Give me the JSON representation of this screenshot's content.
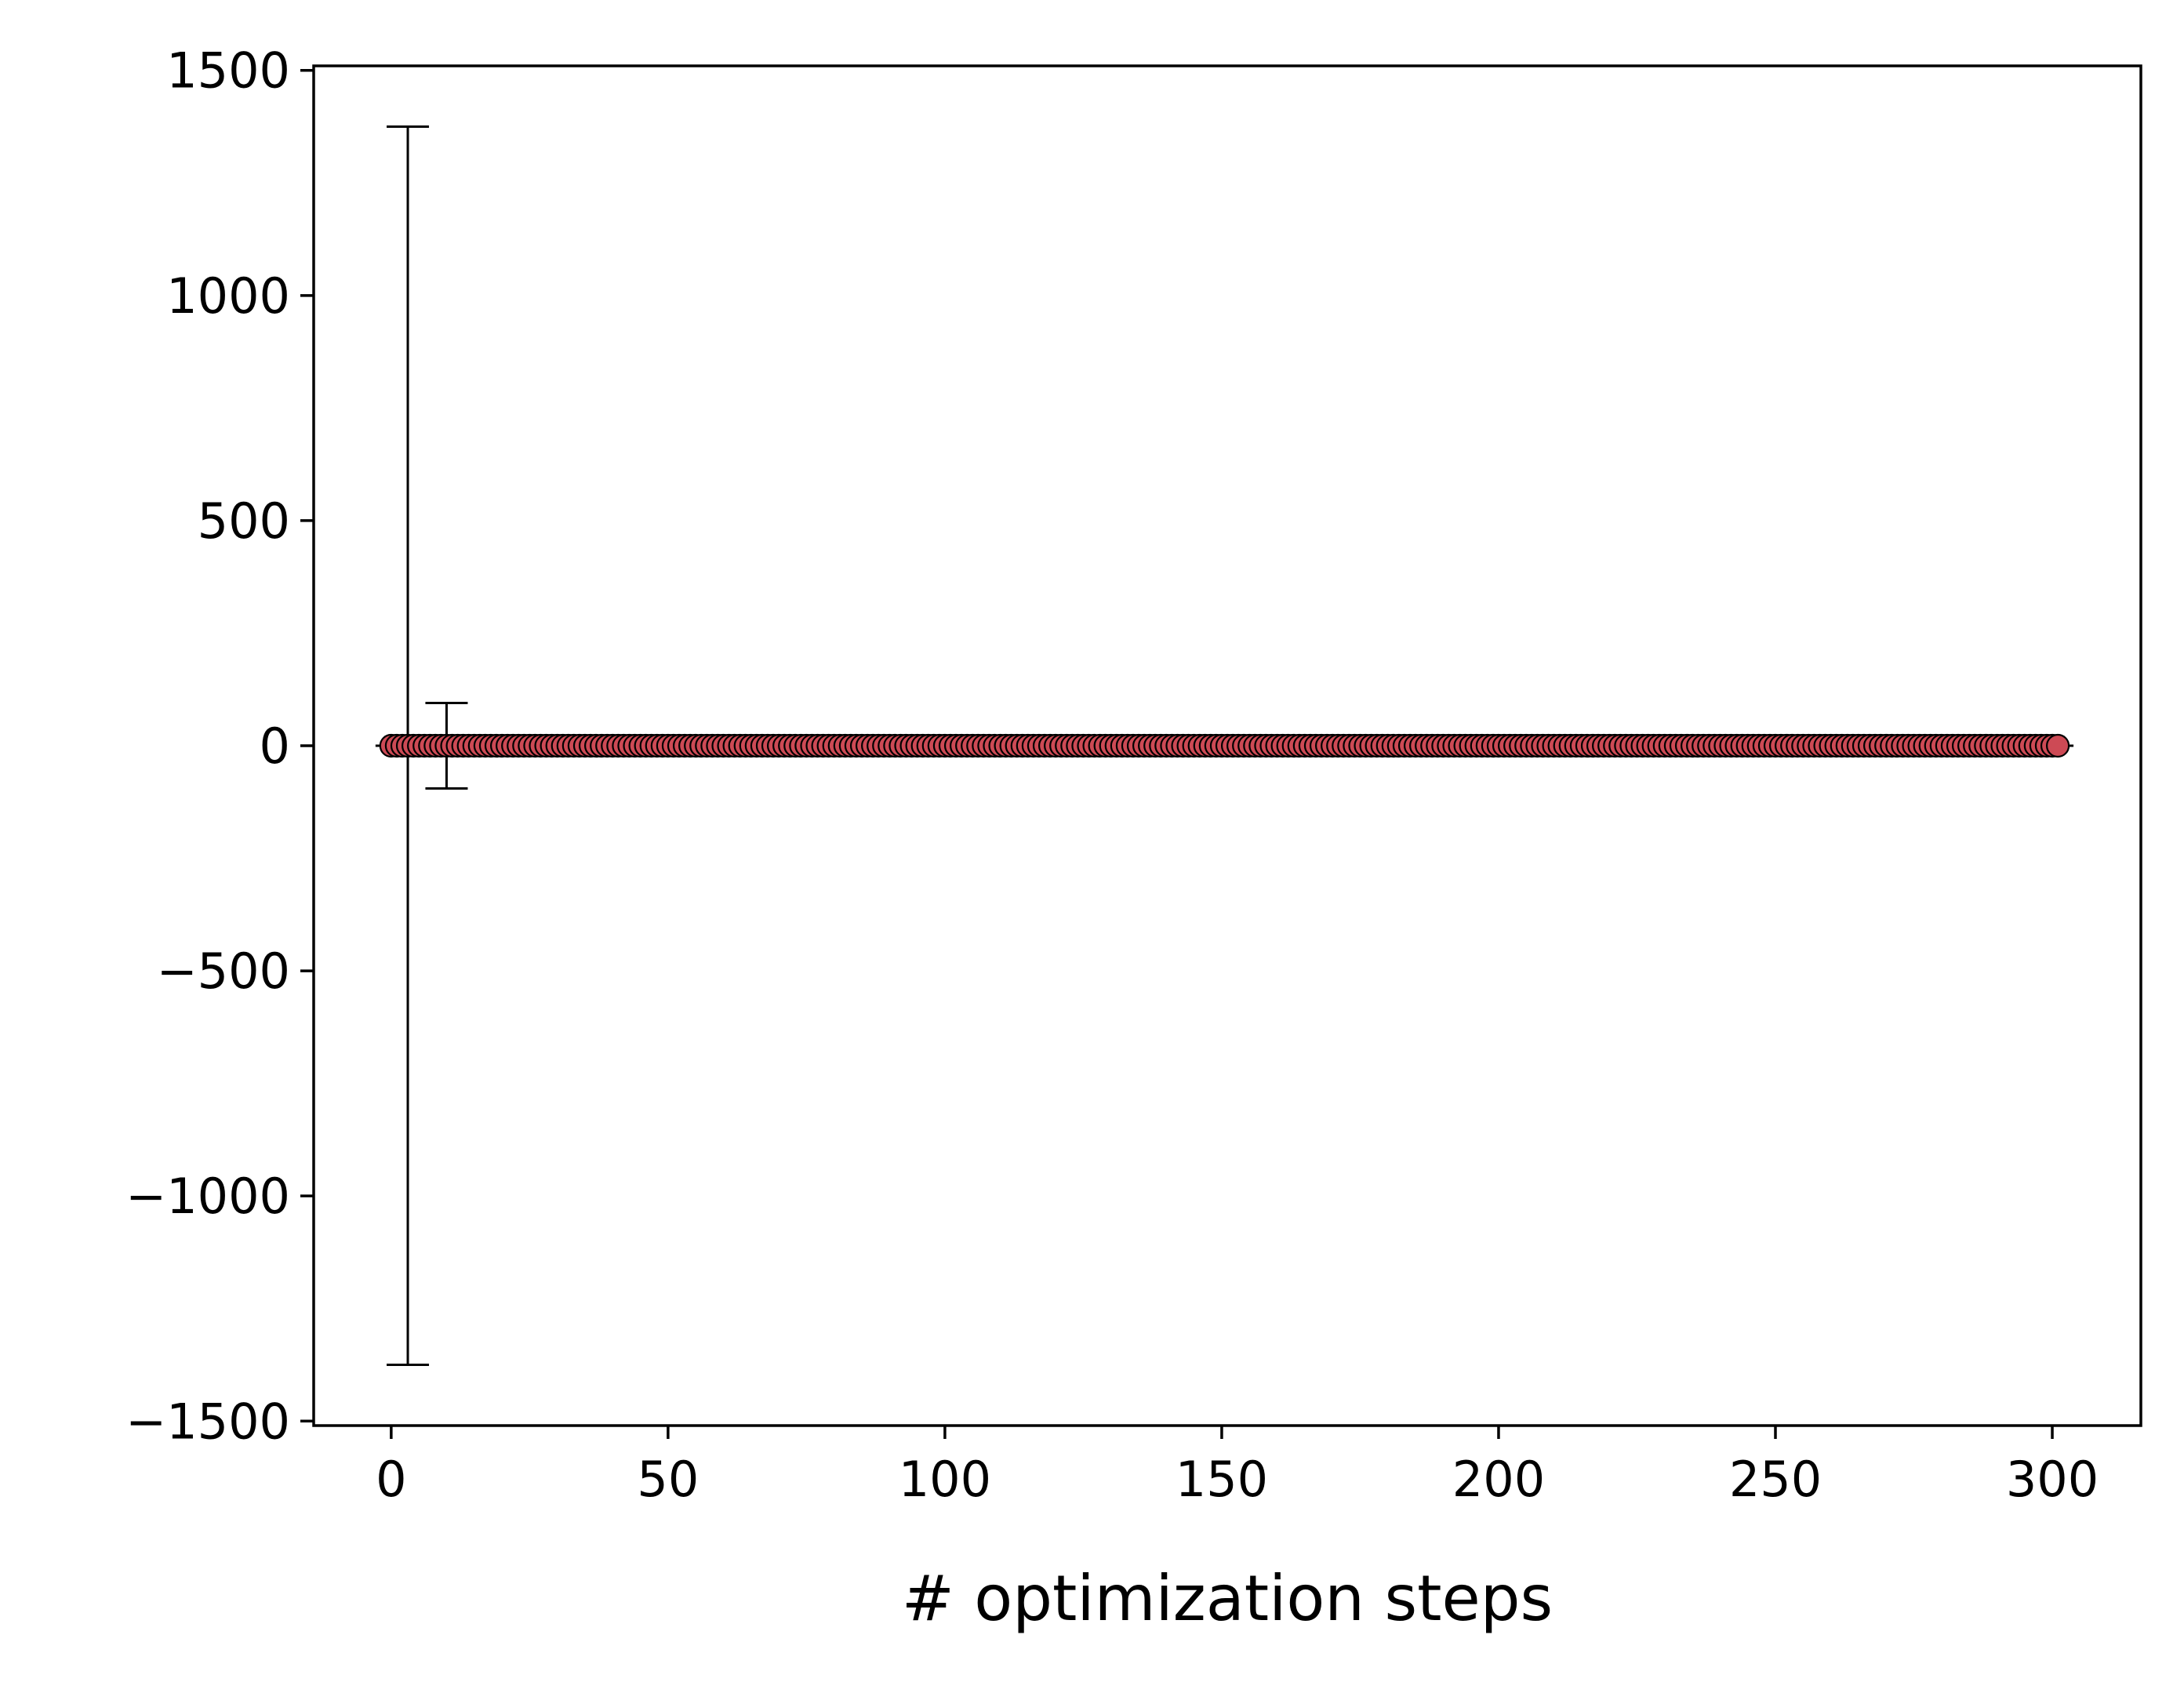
{
  "chart_data": {
    "type": "scatter",
    "title": "",
    "xlabel": "# optimization steps",
    "ylabel": "",
    "xlim": [
      -14,
      316
    ],
    "ylim": [
      -1510,
      1510
    ],
    "x_ticks": [
      0,
      50,
      100,
      150,
      200,
      250,
      300
    ],
    "y_ticks": [
      -1500,
      -1000,
      -500,
      0,
      500,
      1000,
      1500
    ],
    "x_tick_labels": [
      "0",
      "50",
      "100",
      "150",
      "200",
      "250",
      "300"
    ],
    "y_tick_labels": [
      "−1500",
      "−1000",
      "−500",
      "0",
      "500",
      "1000",
      "1500"
    ],
    "grid": false,
    "legend": "none",
    "marker_fill": "#cd4a55",
    "marker_edge": "#000000",
    "points": {
      "x_start": 0,
      "x_end": 301,
      "x_step": 1,
      "y": 0
    },
    "error_bars": [
      {
        "x": 3,
        "y": 0,
        "err": 1375
      },
      {
        "x": 10,
        "y": 0,
        "err": 95
      }
    ]
  }
}
